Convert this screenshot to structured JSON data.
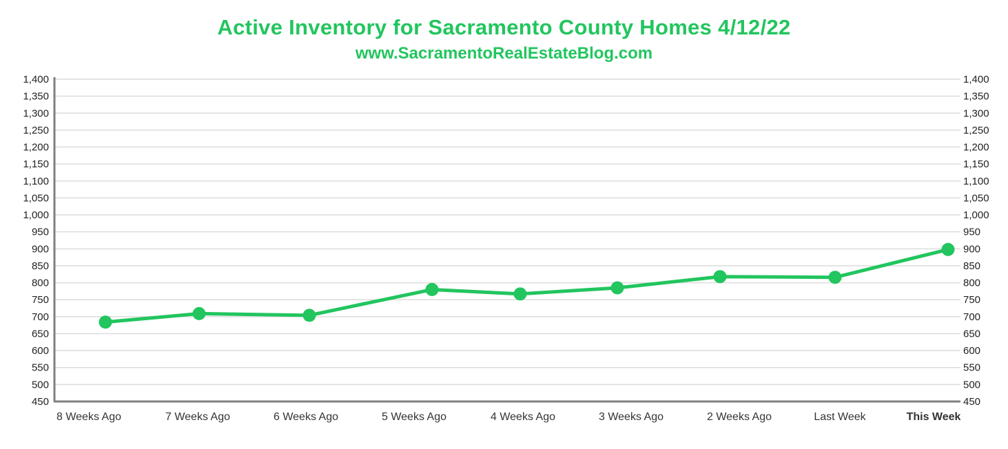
{
  "colors": {
    "accent": "#22c55e",
    "axis": "#7f7f7f",
    "grid": "#dcdcdc",
    "text": "#222222"
  },
  "chart_data": {
    "type": "line",
    "title": "Active Inventory for Sacramento County Homes 4/12/22",
    "subtitle": "www.SacramentoRealEstateBlog.com",
    "categories": [
      "8 Weeks Ago",
      "7 Weeks Ago",
      "6 Weeks Ago",
      "5 Weeks Ago",
      "4 Weeks Ago",
      "3 Weeks Ago",
      "2 Weeks Ago",
      "Last Week",
      "This Week"
    ],
    "highlight_category": "This Week",
    "series": [
      {
        "values": [
          684,
          709,
          704,
          780,
          767,
          785,
          818,
          816,
          898
        ]
      }
    ],
    "ylim": [
      450,
      1400
    ],
    "yticks": [
      "450",
      "500",
      "550",
      "600",
      "650",
      "700",
      "750",
      "800",
      "850",
      "900",
      "950",
      "1,000",
      "1,050",
      "1,100",
      "1,150",
      "1,200",
      "1,250",
      "1,300",
      "1,350",
      "1,400"
    ],
    "grid": true,
    "secondary_axis": "mirrored",
    "xlabel": "",
    "ylabel": ""
  }
}
